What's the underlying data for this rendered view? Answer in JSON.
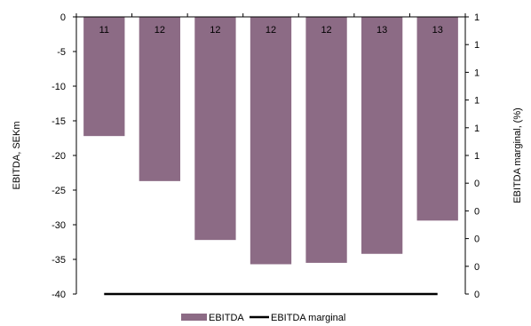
{
  "chart_data": {
    "type": "bar",
    "categories": [
      "11",
      "12",
      "12",
      "12",
      "12",
      "13",
      "13"
    ],
    "series": [
      {
        "name": "EBITDA",
        "axis": "left",
        "type": "bar",
        "color": "#8c6b85",
        "values": [
          -17.2,
          -23.7,
          -32.2,
          -35.7,
          -35.5,
          -34.2,
          -29.4
        ]
      },
      {
        "name": "EBITDA marginal",
        "axis": "right",
        "type": "line",
        "color": "#000000",
        "values": [
          0,
          0,
          0,
          0,
          0,
          0,
          0
        ]
      }
    ],
    "ylabel": "EBITDA, SEKm",
    "y2label": "EBITDA marginal, (%)",
    "ylim": [
      -40,
      0
    ],
    "yticks": [
      0,
      -5,
      -10,
      -15,
      -20,
      -25,
      -30,
      -35,
      -40
    ],
    "y2ticks": [
      "1",
      "1",
      "1",
      "1",
      "1",
      "1",
      "0",
      "0",
      "0",
      "0",
      "0"
    ],
    "legend": "bottom",
    "grid": false
  }
}
